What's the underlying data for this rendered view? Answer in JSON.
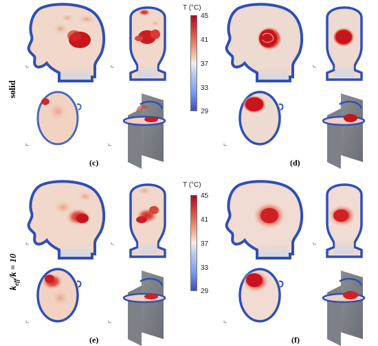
{
  "row_labels": {
    "top": "solid",
    "bottom_prefix": "k",
    "bottom_sub": "eff",
    "bottom_suffix": "/k = 10"
  },
  "panel_labels": [
    "(c)",
    "(d)",
    "(e)",
    "(f)"
  ],
  "colorbar": {
    "title": "T (°C)",
    "ticks": [
      "45",
      "41",
      "37",
      "33",
      "29"
    ],
    "colors": {
      "hot": "#b40426",
      "mid": "#eeeeee",
      "cold": "#3b4cc0"
    }
  }
}
